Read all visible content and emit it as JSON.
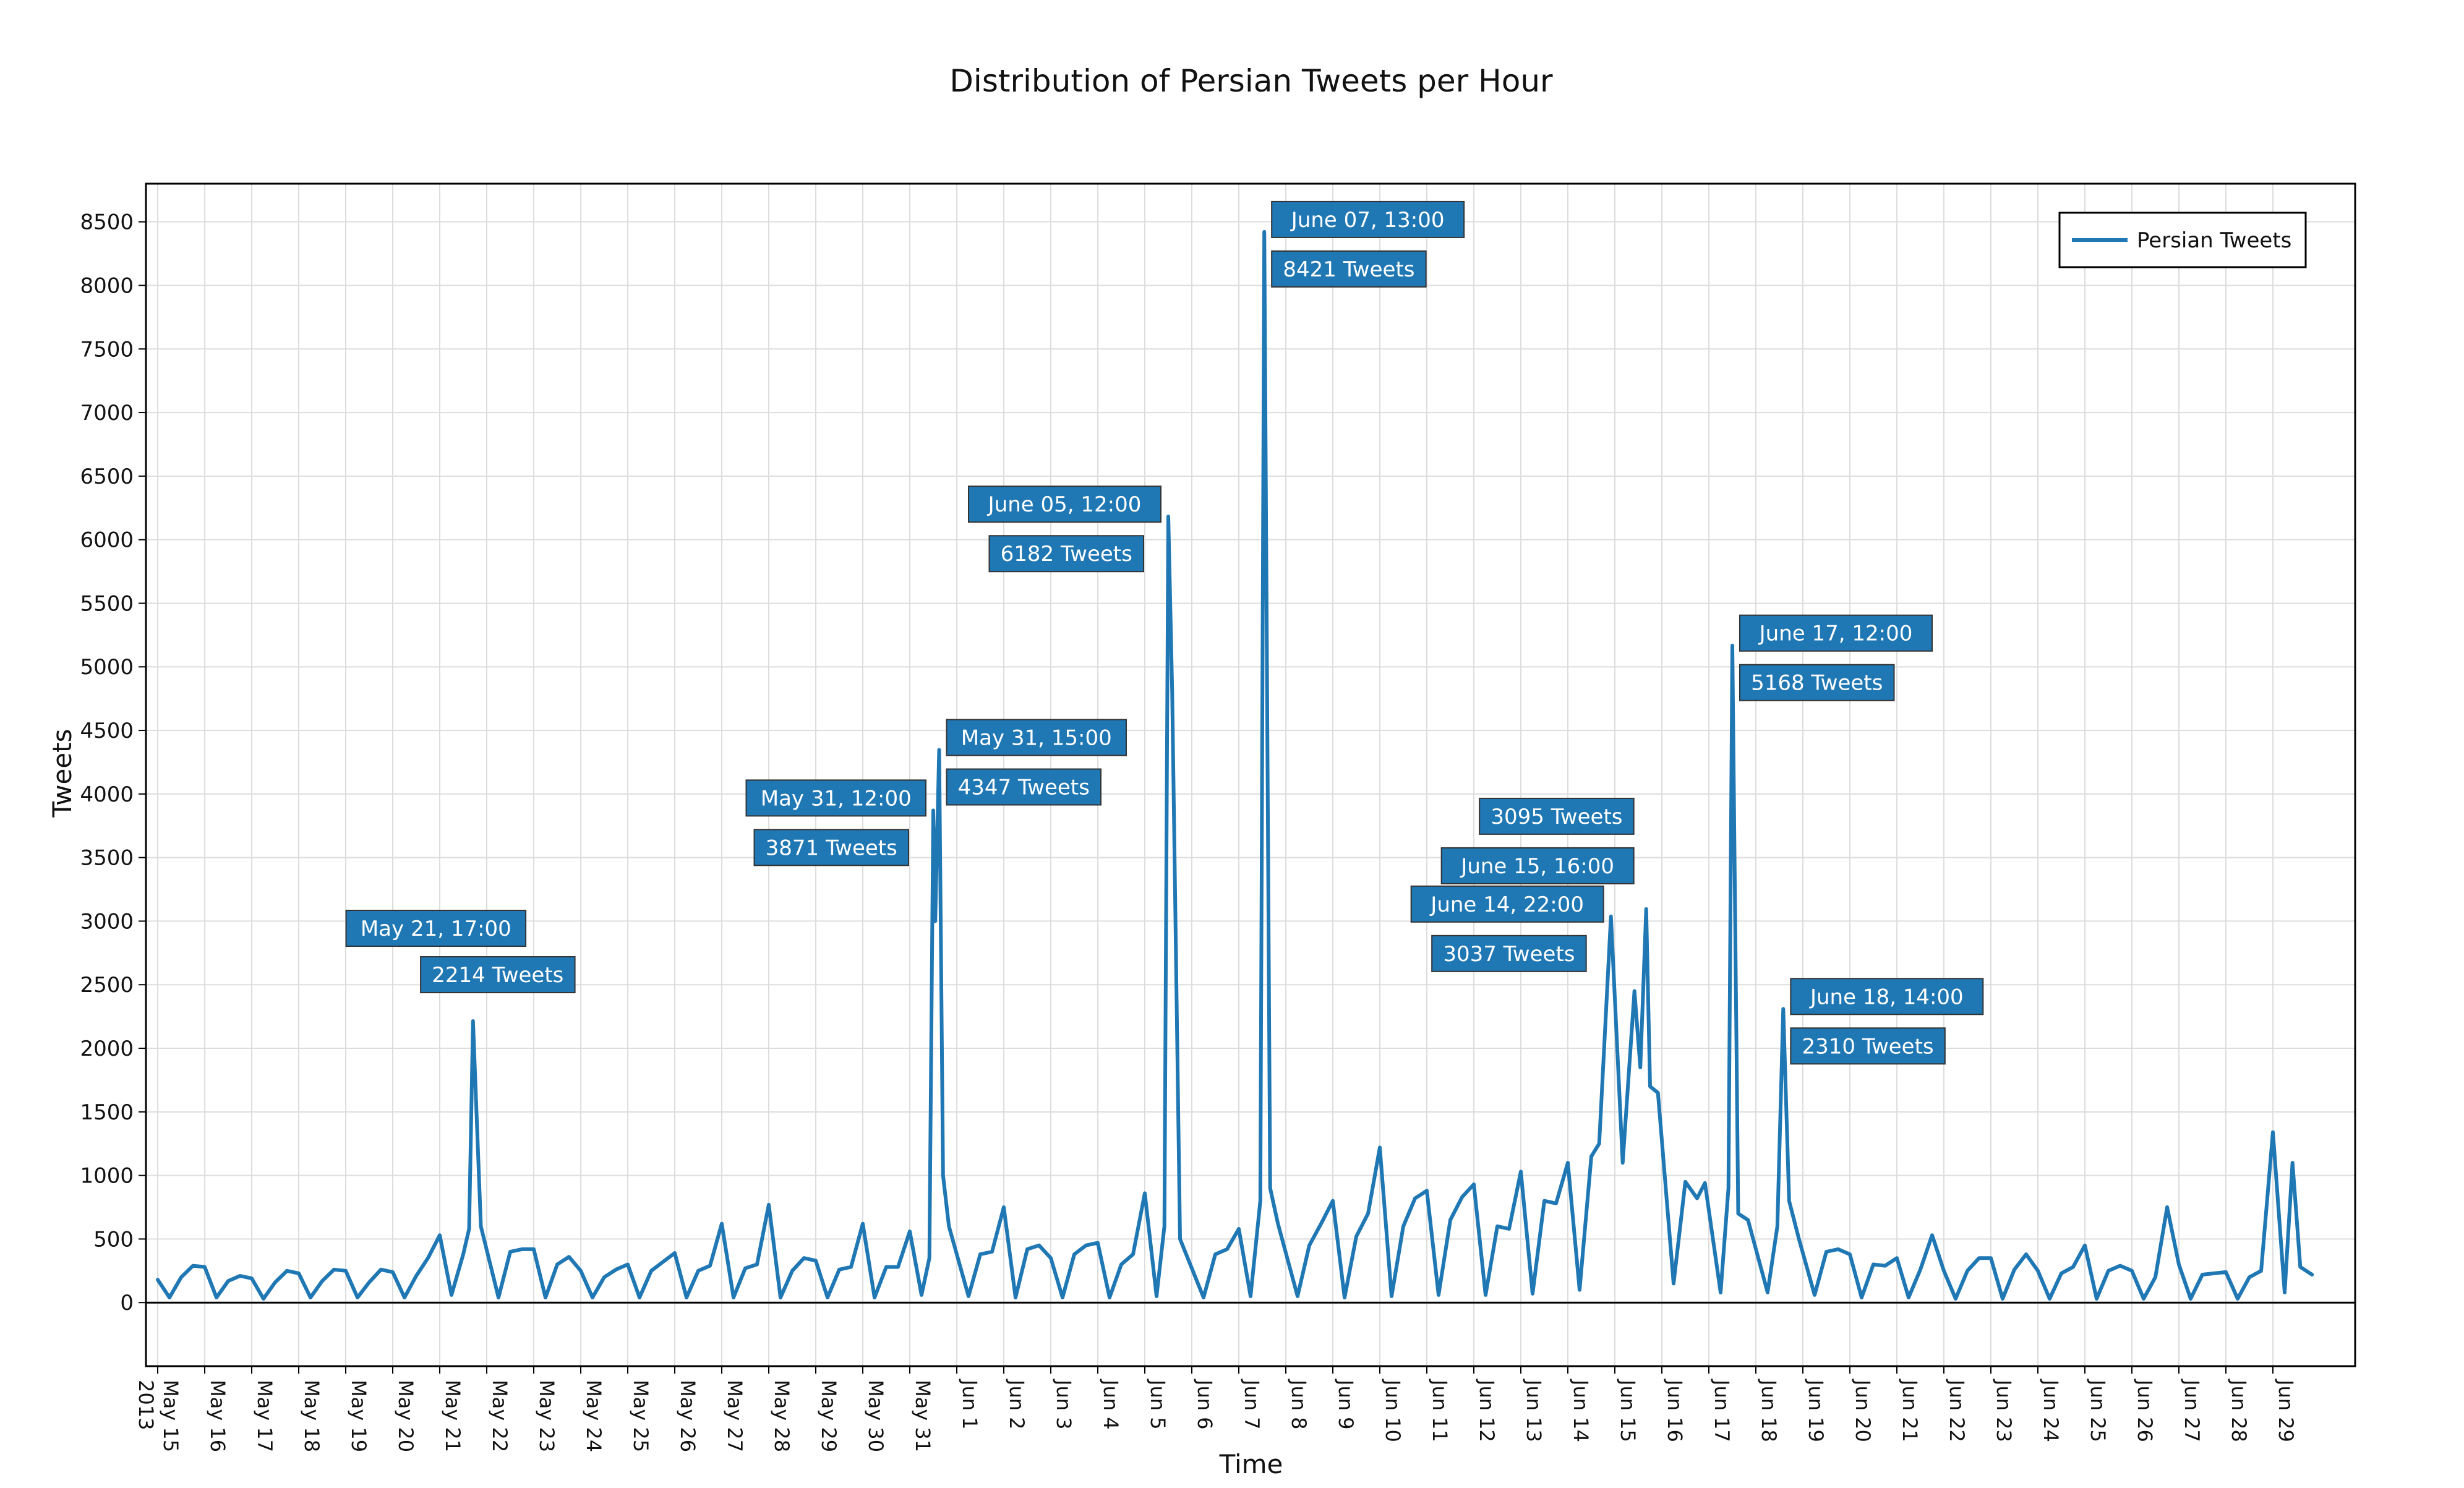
{
  "chart_data": {
    "type": "line",
    "title": "Distribution of Persian Tweets per Hour",
    "xlabel": "Time",
    "ylabel": "Tweets",
    "ylim": [
      -500,
      8800
    ],
    "x_range": [
      "2013-05-14 18:00",
      "2013-06-30 18:00"
    ],
    "y_ticks": [
      0,
      500,
      1000,
      1500,
      2000,
      2500,
      3000,
      3500,
      4000,
      4500,
      5000,
      5500,
      6000,
      6500,
      7000,
      7500,
      8000,
      8500
    ],
    "x_ticks": [
      {
        "date": "2013-05-15",
        "label": "May 15",
        "sublabel": "2013"
      },
      {
        "date": "2013-05-16",
        "label": "May 16"
      },
      {
        "date": "2013-05-17",
        "label": "May 17"
      },
      {
        "date": "2013-05-18",
        "label": "May 18"
      },
      {
        "date": "2013-05-19",
        "label": "May 19"
      },
      {
        "date": "2013-05-20",
        "label": "May 20"
      },
      {
        "date": "2013-05-21",
        "label": "May 21"
      },
      {
        "date": "2013-05-22",
        "label": "May 22"
      },
      {
        "date": "2013-05-23",
        "label": "May 23"
      },
      {
        "date": "2013-05-24",
        "label": "May 24"
      },
      {
        "date": "2013-05-25",
        "label": "May 25"
      },
      {
        "date": "2013-05-26",
        "label": "May 26"
      },
      {
        "date": "2013-05-27",
        "label": "May 27"
      },
      {
        "date": "2013-05-28",
        "label": "May 28"
      },
      {
        "date": "2013-05-29",
        "label": "May 29"
      },
      {
        "date": "2013-05-30",
        "label": "May 30"
      },
      {
        "date": "2013-05-31",
        "label": "May 31"
      },
      {
        "date": "2013-06-01",
        "label": "Jun 1"
      },
      {
        "date": "2013-06-02",
        "label": "Jun 2"
      },
      {
        "date": "2013-06-03",
        "label": "Jun 3"
      },
      {
        "date": "2013-06-04",
        "label": "Jun 4"
      },
      {
        "date": "2013-06-05",
        "label": "Jun 5"
      },
      {
        "date": "2013-06-06",
        "label": "Jun 6"
      },
      {
        "date": "2013-06-07",
        "label": "Jun 7"
      },
      {
        "date": "2013-06-08",
        "label": "Jun 8"
      },
      {
        "date": "2013-06-09",
        "label": "Jun 9"
      },
      {
        "date": "2013-06-10",
        "label": "Jun 10"
      },
      {
        "date": "2013-06-11",
        "label": "Jun 11"
      },
      {
        "date": "2013-06-12",
        "label": "Jun 12"
      },
      {
        "date": "2013-06-13",
        "label": "Jun 13"
      },
      {
        "date": "2013-06-14",
        "label": "Jun 14"
      },
      {
        "date": "2013-06-15",
        "label": "Jun 15"
      },
      {
        "date": "2013-06-16",
        "label": "Jun 16"
      },
      {
        "date": "2013-06-17",
        "label": "Jun 17"
      },
      {
        "date": "2013-06-18",
        "label": "Jun 18"
      },
      {
        "date": "2013-06-19",
        "label": "Jun 19"
      },
      {
        "date": "2013-06-20",
        "label": "Jun 20"
      },
      {
        "date": "2013-06-21",
        "label": "Jun 21"
      },
      {
        "date": "2013-06-22",
        "label": "Jun 22"
      },
      {
        "date": "2013-06-23",
        "label": "Jun 23"
      },
      {
        "date": "2013-06-24",
        "label": "Jun 24"
      },
      {
        "date": "2013-06-25",
        "label": "Jun 25"
      },
      {
        "date": "2013-06-26",
        "label": "Jun 26"
      },
      {
        "date": "2013-06-27",
        "label": "Jun 27"
      },
      {
        "date": "2013-06-28",
        "label": "Jun 28"
      },
      {
        "date": "2013-06-29",
        "label": "Jun 29"
      }
    ],
    "grid": true,
    "legend_position": "top-right",
    "series": [
      {
        "name": "Persian Tweets",
        "color": "#1f77b4",
        "points": [
          [
            "2013-05-15 00:00",
            180
          ],
          [
            "2013-05-15 06:00",
            40
          ],
          [
            "2013-05-15 12:00",
            200
          ],
          [
            "2013-05-15 18:00",
            290
          ],
          [
            "2013-05-16 00:00",
            280
          ],
          [
            "2013-05-16 06:00",
            40
          ],
          [
            "2013-05-16 12:00",
            170
          ],
          [
            "2013-05-16 18:00",
            210
          ],
          [
            "2013-05-17 00:00",
            190
          ],
          [
            "2013-05-17 06:00",
            30
          ],
          [
            "2013-05-17 12:00",
            160
          ],
          [
            "2013-05-17 18:00",
            250
          ],
          [
            "2013-05-18 00:00",
            230
          ],
          [
            "2013-05-18 06:00",
            40
          ],
          [
            "2013-05-18 12:00",
            170
          ],
          [
            "2013-05-18 18:00",
            260
          ],
          [
            "2013-05-19 00:00",
            250
          ],
          [
            "2013-05-19 06:00",
            40
          ],
          [
            "2013-05-19 12:00",
            160
          ],
          [
            "2013-05-19 18:00",
            260
          ],
          [
            "2013-05-20 00:00",
            240
          ],
          [
            "2013-05-20 06:00",
            40
          ],
          [
            "2013-05-20 12:00",
            210
          ],
          [
            "2013-05-20 18:00",
            350
          ],
          [
            "2013-05-21 00:00",
            530
          ],
          [
            "2013-05-21 06:00",
            60
          ],
          [
            "2013-05-21 12:00",
            380
          ],
          [
            "2013-05-21 15:00",
            580
          ],
          [
            "2013-05-21 17:00",
            2214
          ],
          [
            "2013-05-21 21:00",
            600
          ],
          [
            "2013-05-22 06:00",
            40
          ],
          [
            "2013-05-22 12:00",
            400
          ],
          [
            "2013-05-22 18:00",
            420
          ],
          [
            "2013-05-23 00:00",
            420
          ],
          [
            "2013-05-23 06:00",
            40
          ],
          [
            "2013-05-23 12:00",
            300
          ],
          [
            "2013-05-23 18:00",
            360
          ],
          [
            "2013-05-24 00:00",
            250
          ],
          [
            "2013-05-24 06:00",
            40
          ],
          [
            "2013-05-24 12:00",
            200
          ],
          [
            "2013-05-24 18:00",
            260
          ],
          [
            "2013-05-25 00:00",
            300
          ],
          [
            "2013-05-25 06:00",
            40
          ],
          [
            "2013-05-25 12:00",
            250
          ],
          [
            "2013-05-25 18:00",
            320
          ],
          [
            "2013-05-26 00:00",
            390
          ],
          [
            "2013-05-26 06:00",
            40
          ],
          [
            "2013-05-26 12:00",
            250
          ],
          [
            "2013-05-26 18:00",
            290
          ],
          [
            "2013-05-27 00:00",
            620
          ],
          [
            "2013-05-27 06:00",
            40
          ],
          [
            "2013-05-27 12:00",
            270
          ],
          [
            "2013-05-27 18:00",
            300
          ],
          [
            "2013-05-28 00:00",
            770
          ],
          [
            "2013-05-28 06:00",
            40
          ],
          [
            "2013-05-28 12:00",
            250
          ],
          [
            "2013-05-28 18:00",
            350
          ],
          [
            "2013-05-29 00:00",
            330
          ],
          [
            "2013-05-29 06:00",
            40
          ],
          [
            "2013-05-29 12:00",
            260
          ],
          [
            "2013-05-29 18:00",
            280
          ],
          [
            "2013-05-30 00:00",
            620
          ],
          [
            "2013-05-30 06:00",
            40
          ],
          [
            "2013-05-30 12:00",
            280
          ],
          [
            "2013-05-30 18:00",
            280
          ],
          [
            "2013-05-31 00:00",
            560
          ],
          [
            "2013-05-31 06:00",
            60
          ],
          [
            "2013-05-31 10:00",
            350
          ],
          [
            "2013-05-31 12:00",
            3871
          ],
          [
            "2013-05-31 13:00",
            3000
          ],
          [
            "2013-05-31 15:00",
            4347
          ],
          [
            "2013-05-31 17:00",
            1000
          ],
          [
            "2013-05-31 20:00",
            600
          ],
          [
            "2013-06-01 06:00",
            50
          ],
          [
            "2013-06-01 12:00",
            380
          ],
          [
            "2013-06-01 18:00",
            400
          ],
          [
            "2013-06-02 00:00",
            750
          ],
          [
            "2013-06-02 06:00",
            40
          ],
          [
            "2013-06-02 12:00",
            420
          ],
          [
            "2013-06-02 18:00",
            450
          ],
          [
            "2013-06-03 00:00",
            350
          ],
          [
            "2013-06-03 06:00",
            40
          ],
          [
            "2013-06-03 12:00",
            380
          ],
          [
            "2013-06-03 18:00",
            450
          ],
          [
            "2013-06-04 00:00",
            470
          ],
          [
            "2013-06-04 06:00",
            40
          ],
          [
            "2013-06-04 12:00",
            300
          ],
          [
            "2013-06-04 18:00",
            380
          ],
          [
            "2013-06-05 00:00",
            860
          ],
          [
            "2013-06-05 06:00",
            50
          ],
          [
            "2013-06-05 10:00",
            600
          ],
          [
            "2013-06-05 12:00",
            6182
          ],
          [
            "2013-06-05 14:00",
            4800
          ],
          [
            "2013-06-05 18:00",
            500
          ],
          [
            "2013-06-06 06:00",
            40
          ],
          [
            "2013-06-06 12:00",
            380
          ],
          [
            "2013-06-06 18:00",
            420
          ],
          [
            "2013-06-07 00:00",
            580
          ],
          [
            "2013-06-07 06:00",
            50
          ],
          [
            "2013-06-07 11:00",
            800
          ],
          [
            "2013-06-07 13:00",
            8421
          ],
          [
            "2013-06-07 16:00",
            900
          ],
          [
            "2013-06-07 20:00",
            620
          ],
          [
            "2013-06-08 06:00",
            50
          ],
          [
            "2013-06-08 12:00",
            450
          ],
          [
            "2013-06-08 18:00",
            620
          ],
          [
            "2013-06-09 00:00",
            800
          ],
          [
            "2013-06-09 06:00",
            40
          ],
          [
            "2013-06-09 12:00",
            520
          ],
          [
            "2013-06-09 18:00",
            700
          ],
          [
            "2013-06-10 00:00",
            1220
          ],
          [
            "2013-06-10 06:00",
            50
          ],
          [
            "2013-06-10 12:00",
            600
          ],
          [
            "2013-06-10 18:00",
            820
          ],
          [
            "2013-06-11 00:00",
            880
          ],
          [
            "2013-06-11 06:00",
            60
          ],
          [
            "2013-06-11 12:00",
            650
          ],
          [
            "2013-06-11 18:00",
            830
          ],
          [
            "2013-06-12 00:00",
            930
          ],
          [
            "2013-06-12 06:00",
            60
          ],
          [
            "2013-06-12 12:00",
            600
          ],
          [
            "2013-06-12 18:00",
            580
          ],
          [
            "2013-06-13 00:00",
            1030
          ],
          [
            "2013-06-13 06:00",
            70
          ],
          [
            "2013-06-13 12:00",
            800
          ],
          [
            "2013-06-13 18:00",
            780
          ],
          [
            "2013-06-14 00:00",
            1100
          ],
          [
            "2013-06-14 06:00",
            100
          ],
          [
            "2013-06-14 12:00",
            1150
          ],
          [
            "2013-06-14 16:00",
            1250
          ],
          [
            "2013-06-14 22:00",
            3037
          ],
          [
            "2013-06-15 04:00",
            1100
          ],
          [
            "2013-06-15 10:00",
            2450
          ],
          [
            "2013-06-15 13:00",
            1850
          ],
          [
            "2013-06-15 16:00",
            3095
          ],
          [
            "2013-06-15 18:00",
            1700
          ],
          [
            "2013-06-15 22:00",
            1650
          ],
          [
            "2013-06-16 06:00",
            150
          ],
          [
            "2013-06-16 12:00",
            950
          ],
          [
            "2013-06-16 18:00",
            820
          ],
          [
            "2013-06-16 22:00",
            940
          ],
          [
            "2013-06-17 06:00",
            80
          ],
          [
            "2013-06-17 10:00",
            900
          ],
          [
            "2013-06-17 12:00",
            5168
          ],
          [
            "2013-06-17 15:00",
            700
          ],
          [
            "2013-06-17 20:00",
            650
          ],
          [
            "2013-06-18 06:00",
            80
          ],
          [
            "2013-06-18 11:00",
            600
          ],
          [
            "2013-06-18 14:00",
            2310
          ],
          [
            "2013-06-18 17:00",
            800
          ],
          [
            "2013-06-18 22:00",
            500
          ],
          [
            "2013-06-19 06:00",
            60
          ],
          [
            "2013-06-19 12:00",
            400
          ],
          [
            "2013-06-19 18:00",
            420
          ],
          [
            "2013-06-20 00:00",
            380
          ],
          [
            "2013-06-20 06:00",
            40
          ],
          [
            "2013-06-20 12:00",
            300
          ],
          [
            "2013-06-20 18:00",
            290
          ],
          [
            "2013-06-21 00:00",
            350
          ],
          [
            "2013-06-21 06:00",
            40
          ],
          [
            "2013-06-21 12:00",
            260
          ],
          [
            "2013-06-21 18:00",
            530
          ],
          [
            "2013-06-22 00:00",
            250
          ],
          [
            "2013-06-22 06:00",
            30
          ],
          [
            "2013-06-22 12:00",
            250
          ],
          [
            "2013-06-22 18:00",
            350
          ],
          [
            "2013-06-23 00:00",
            350
          ],
          [
            "2013-06-23 06:00",
            30
          ],
          [
            "2013-06-23 12:00",
            260
          ],
          [
            "2013-06-23 18:00",
            380
          ],
          [
            "2013-06-24 00:00",
            250
          ],
          [
            "2013-06-24 06:00",
            30
          ],
          [
            "2013-06-24 12:00",
            230
          ],
          [
            "2013-06-24 18:00",
            280
          ],
          [
            "2013-06-25 00:00",
            450
          ],
          [
            "2013-06-25 06:00",
            30
          ],
          [
            "2013-06-25 12:00",
            250
          ],
          [
            "2013-06-25 18:00",
            290
          ],
          [
            "2013-06-26 00:00",
            250
          ],
          [
            "2013-06-26 06:00",
            30
          ],
          [
            "2013-06-26 12:00",
            200
          ],
          [
            "2013-06-26 18:00",
            750
          ],
          [
            "2013-06-27 00:00",
            300
          ],
          [
            "2013-06-27 06:00",
            30
          ],
          [
            "2013-06-27 12:00",
            220
          ],
          [
            "2013-06-27 18:00",
            230
          ],
          [
            "2013-06-28 00:00",
            240
          ],
          [
            "2013-06-28 06:00",
            30
          ],
          [
            "2013-06-28 12:00",
            200
          ],
          [
            "2013-06-28 18:00",
            250
          ],
          [
            "2013-06-29 00:00",
            1340
          ],
          [
            "2013-06-29 06:00",
            80
          ],
          [
            "2013-06-29 10:00",
            1100
          ],
          [
            "2013-06-29 14:00",
            280
          ],
          [
            "2013-06-29 20:00",
            220
          ]
        ]
      }
    ],
    "annotations": [
      {
        "time": "2013-05-21 17:00",
        "label": "May 21, 17:00",
        "count": "2214 Tweets",
        "side": "above-split"
      },
      {
        "time": "2013-05-31 12:00",
        "label": "May 31, 12:00",
        "count": "3871 Tweets",
        "side": "left"
      },
      {
        "time": "2013-05-31 15:00",
        "label": "May 31, 15:00",
        "count": "4347 Tweets",
        "side": "right"
      },
      {
        "time": "2013-06-05 12:00",
        "label": "June 05, 12:00",
        "count": "6182 Tweets",
        "side": "left"
      },
      {
        "time": "2013-06-07 13:00",
        "label": "June 07, 13:00",
        "count": "8421 Tweets",
        "side": "right"
      },
      {
        "time": "2013-06-14 22:00",
        "label": "June 14, 22:00",
        "count": "3037 Tweets",
        "side": "left"
      },
      {
        "time": "2013-06-15 16:00",
        "label": "June 15, 16:00",
        "count": "3095 Tweets",
        "side": "left-stacked-reversed"
      },
      {
        "time": "2013-06-17 12:00",
        "label": "June 17, 12:00",
        "count": "5168 Tweets",
        "side": "right"
      },
      {
        "time": "2013-06-18 14:00",
        "label": "June 18, 14:00",
        "count": "2310 Tweets",
        "side": "right"
      }
    ]
  }
}
